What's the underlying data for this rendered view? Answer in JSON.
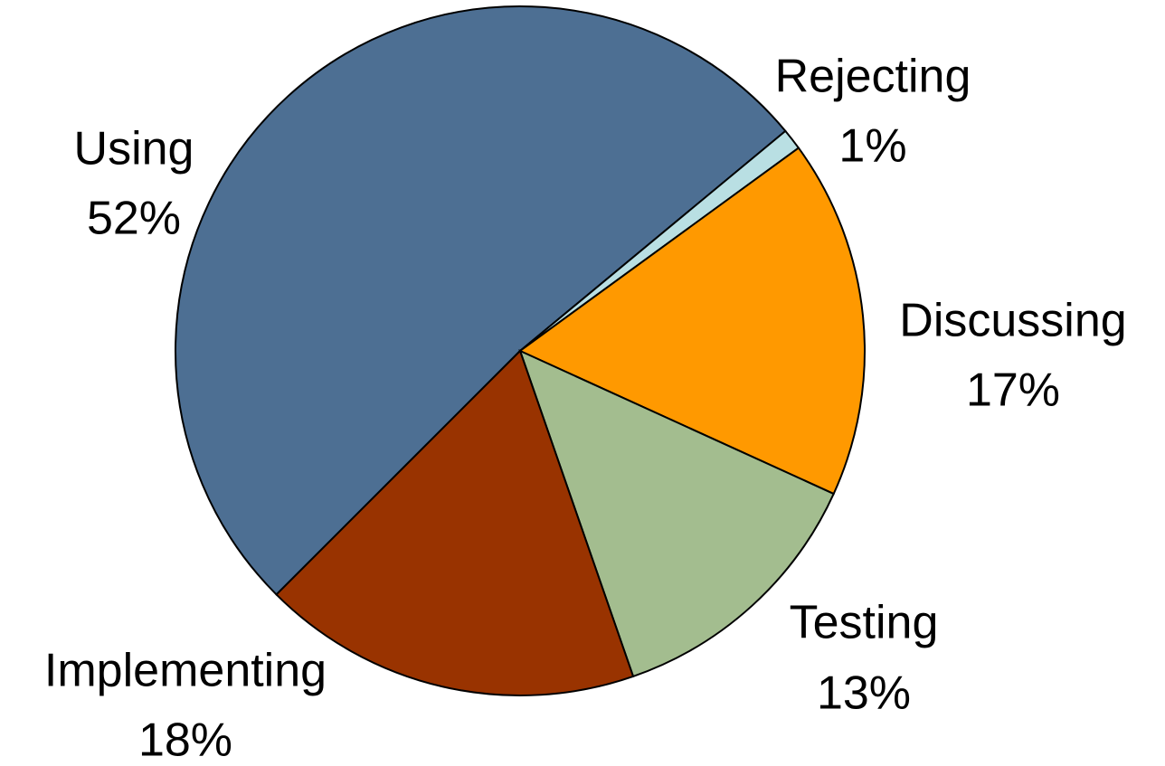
{
  "chart_data": {
    "type": "pie",
    "categories": [
      "Using",
      "Rejecting",
      "Discussing",
      "Testing",
      "Implementing"
    ],
    "values": [
      52,
      1,
      17,
      13,
      18
    ],
    "value_labels": [
      "52%",
      "1%",
      "17%",
      "13%",
      "18%"
    ],
    "colors": [
      "#4d6f93",
      "#b9dfe3",
      "#ff9900",
      "#a3bd8f",
      "#993300"
    ]
  }
}
